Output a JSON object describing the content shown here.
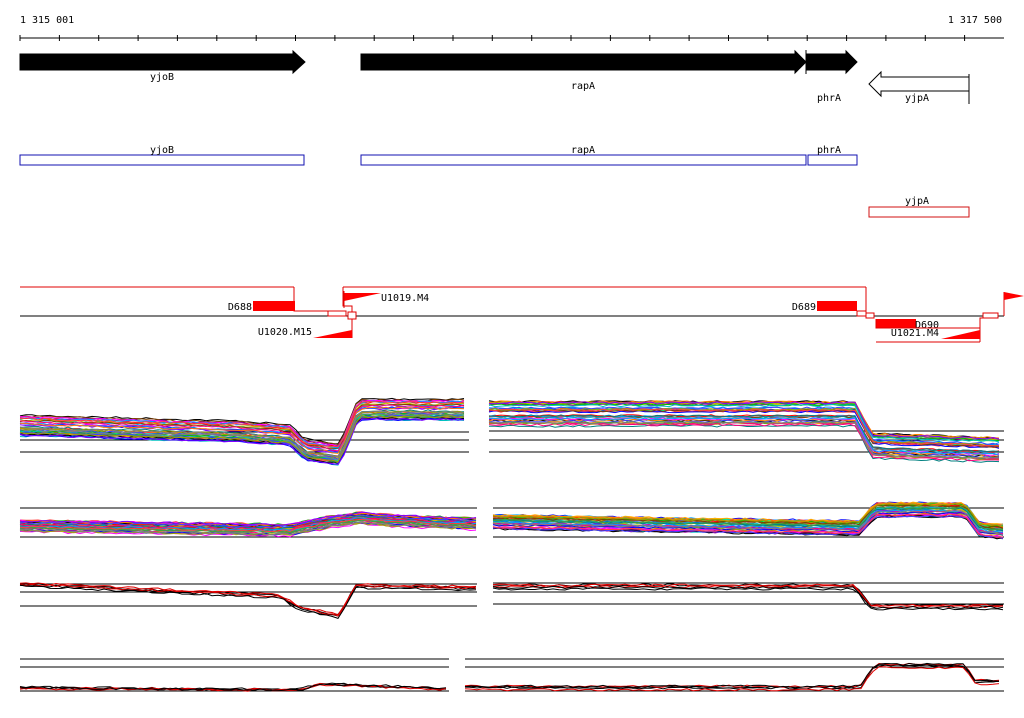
{
  "coord": {
    "start_label": "1 315 001",
    "end_label": "1 317 500"
  },
  "genes_top": [
    {
      "label": "yjoB",
      "strand": "+",
      "fill": "#000000"
    },
    {
      "label": "rapA",
      "strand": "+",
      "fill": "#000000"
    },
    {
      "label": "phrA",
      "strand": "+",
      "fill": "#000000"
    },
    {
      "label": "yjpA",
      "strand": "-",
      "fill": "#ffffff"
    }
  ],
  "cds_plus": [
    {
      "label": "yjoB",
      "color": "#1010b0"
    },
    {
      "label": "rapA",
      "color": "#1010b0"
    },
    {
      "label": "phrA",
      "color": "#1010b0"
    }
  ],
  "cds_minus": [
    {
      "label": "yjpA",
      "color": "#d01010"
    }
  ],
  "features": {
    "D688": "D688",
    "U1019": "U1019.M4",
    "D689": "D689",
    "U1020": "U1020.M15",
    "D690": "D690",
    "U1021": "U1021.M4"
  },
  "colors": {
    "feature_red": "#ff0000",
    "line_red": "#e00000",
    "axis": "#000000"
  },
  "icons": {
    "coordinate_ruler": "ruler-icon"
  }
}
